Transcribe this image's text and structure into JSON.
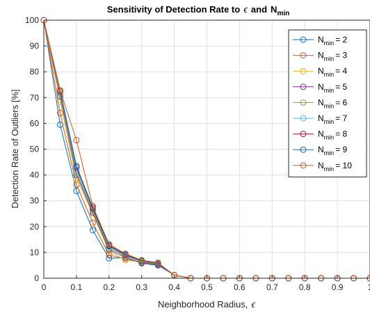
{
  "chart_data": {
    "type": "line",
    "title": {
      "main": "Sensitivity of Detection Rate to",
      "epsilon": "ϵ",
      "and": "and",
      "n": "N",
      "sub": "min"
    },
    "xlabel": {
      "text": "Neighborhood Radius,",
      "symbol": "ϵ"
    },
    "ylabel": "Detection Rate of Outliers [%]",
    "xlim": [
      0,
      1
    ],
    "ylim": [
      0,
      100
    ],
    "xticks": [
      "0",
      "0.1",
      "0.2",
      "0.3",
      "0.4",
      "0.5",
      "0.6",
      "0.7",
      "0.8",
      "0.9",
      "1"
    ],
    "yticks": [
      "0",
      "10",
      "20",
      "30",
      "40",
      "50",
      "60",
      "70",
      "80",
      "90",
      "100"
    ],
    "grid": true,
    "legend_position": "top-right",
    "x": [
      0,
      0.05,
      0.1,
      0.15,
      0.2,
      0.25,
      0.3,
      0.35,
      0.4,
      0.45,
      0.5,
      0.55,
      0.6,
      0.65,
      0.7,
      0.75,
      0.8,
      0.85,
      0.9,
      0.95,
      1.0
    ],
    "series": [
      {
        "name": "2",
        "color": "#0072BD",
        "values": [
          100,
          59.5,
          33.8,
          18.6,
          7.7,
          8.0,
          5.8,
          5.0,
          1.2,
          0,
          0,
          0,
          0,
          0,
          0,
          0,
          0,
          0,
          0,
          0,
          0
        ]
      },
      {
        "name": "3",
        "color": "#D95319",
        "values": [
          100,
          64.0,
          36.2,
          21.5,
          9.0,
          7.5,
          6.0,
          5.2,
          1.2,
          0,
          0,
          0,
          0,
          0,
          0,
          0,
          0,
          0,
          0,
          0,
          0
        ]
      },
      {
        "name": "4",
        "color": "#EDB120",
        "values": [
          100,
          68.5,
          38.5,
          25.0,
          10.5,
          7.0,
          6.3,
          5.4,
          1.2,
          0,
          0,
          0,
          0,
          0,
          0,
          0,
          0,
          0,
          0,
          0,
          0
        ]
      },
      {
        "name": "5",
        "color": "#7E2F8E",
        "values": [
          100,
          70.5,
          40.0,
          25.5,
          11.0,
          8.0,
          6.0,
          5.2,
          1.2,
          0,
          0,
          0,
          0,
          0,
          0,
          0,
          0,
          0,
          0,
          0,
          0
        ]
      },
      {
        "name": "6",
        "color": "#77AC30",
        "values": [
          100,
          71.5,
          41.0,
          26.0,
          11.5,
          8.5,
          6.4,
          5.5,
          1.2,
          0,
          0,
          0,
          0,
          0,
          0,
          0,
          0,
          0,
          0,
          0,
          0
        ]
      },
      {
        "name": "7",
        "color": "#4DBEEE",
        "values": [
          100,
          72.0,
          42.0,
          26.5,
          12.0,
          8.8,
          6.6,
          5.6,
          1.2,
          0,
          0,
          0,
          0,
          0,
          0,
          0,
          0,
          0,
          0,
          0,
          0
        ]
      },
      {
        "name": "8",
        "color": "#A2142F",
        "values": [
          100,
          72.5,
          43.0,
          27.0,
          12.5,
          9.0,
          6.7,
          5.7,
          1.2,
          0,
          0,
          0,
          0,
          0,
          0,
          0,
          0,
          0,
          0,
          0,
          0
        ]
      },
      {
        "name": "9",
        "color": "#0072BD",
        "values": [
          100,
          72.8,
          43.5,
          27.5,
          12.8,
          9.2,
          6.8,
          5.8,
          1.2,
          0,
          0,
          0,
          0,
          0,
          0,
          0,
          0,
          0,
          0,
          0,
          0
        ]
      },
      {
        "name": "10",
        "color": "#D95319",
        "values": [
          100,
          72.8,
          53.5,
          28.0,
          13.2,
          9.5,
          7.0,
          6.0,
          1.2,
          0,
          0,
          0,
          0,
          0,
          0,
          0,
          0,
          0,
          0,
          0,
          0
        ]
      }
    ],
    "legend_prefix": {
      "n": "N",
      "sub": "min",
      "eq": "="
    }
  }
}
